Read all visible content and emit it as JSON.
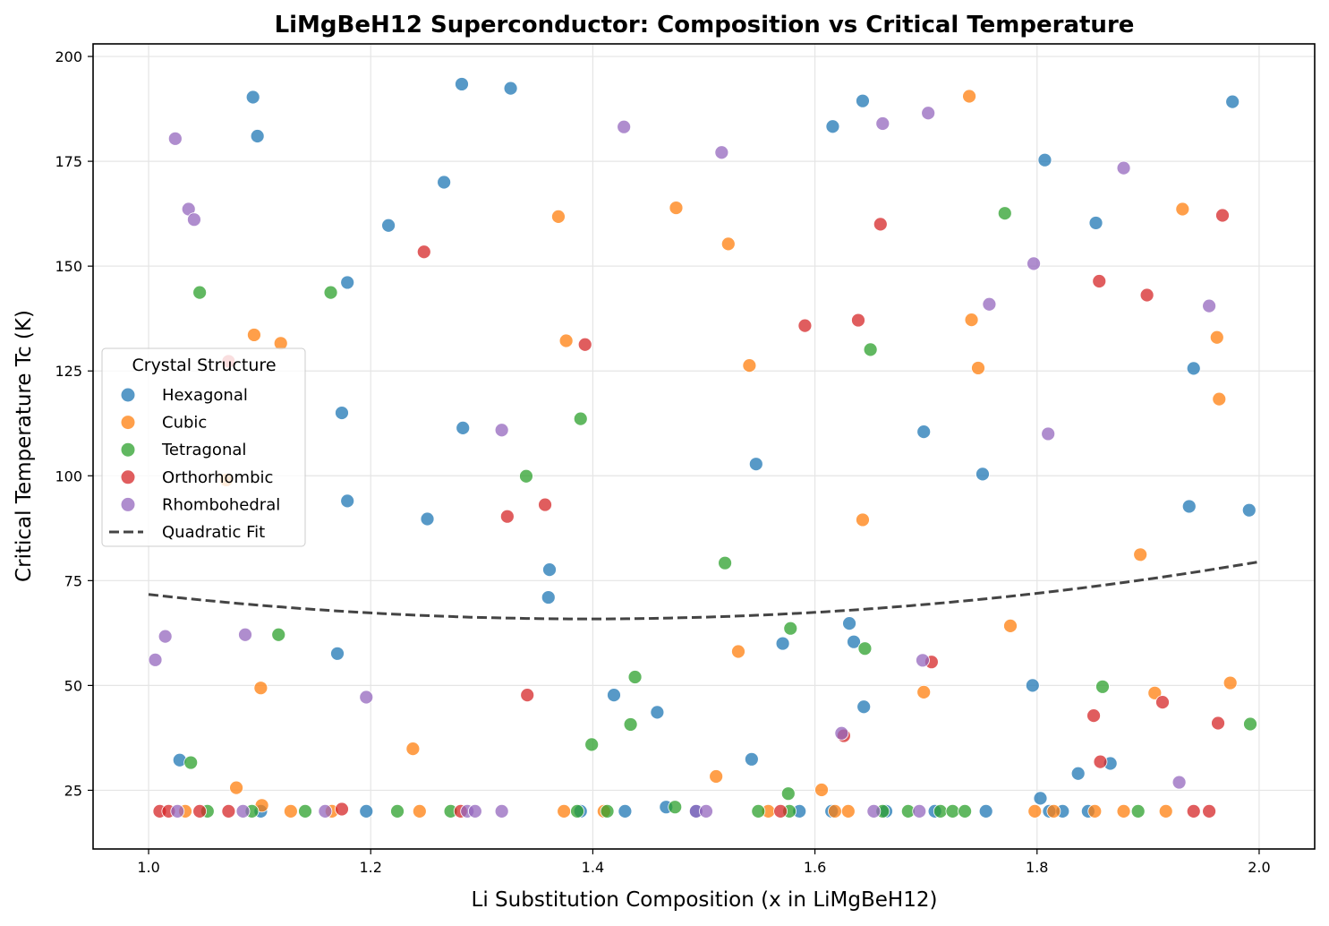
{
  "chart_data": {
    "type": "scatter",
    "title": "LiMgBeH12 Superconductor: Composition vs Critical Temperature",
    "xlabel": "Li Substitution Composition (x in LiMgBeH12)",
    "ylabel": "Critical Temperature Tc (K)",
    "xlim": [
      0.95,
      2.05
    ],
    "ylim": [
      11,
      203
    ],
    "xticks": [
      "1.0",
      "1.2",
      "1.4",
      "1.6",
      "1.8",
      "2.0"
    ],
    "yticks": [
      "25",
      "50",
      "75",
      "100",
      "125",
      "150",
      "175",
      "200"
    ],
    "xtick_values": [
      1.0,
      1.2,
      1.4,
      1.6,
      1.8,
      2.0
    ],
    "ytick_values": [
      25,
      50,
      75,
      100,
      125,
      150,
      175,
      200
    ],
    "grid": true,
    "legend": {
      "title": "Crystal Structure",
      "placement": "center-left",
      "entries": [
        "Hexagonal",
        "Cubic",
        "Tetragonal",
        "Orthorhombic",
        "Rhombohedral",
        "Quadratic Fit"
      ]
    },
    "colors": {
      "Hexagonal": "#1f77b4",
      "Cubic": "#ff7f0e",
      "Tetragonal": "#2ca02c",
      "Orthorhombic": "#d62728",
      "Rhombohedral": "#9467bd",
      "fit": "#444444"
    },
    "series": [
      {
        "name": "Hexagonal",
        "points": [
          [
            1.094,
            190.3
          ],
          [
            1.098,
            181.0
          ],
          [
            1.282,
            193.4
          ],
          [
            1.326,
            192.4
          ],
          [
            1.266,
            170.0
          ],
          [
            1.216,
            159.7
          ],
          [
            1.179,
            146.1
          ],
          [
            1.174,
            115.0
          ],
          [
            1.283,
            111.4
          ],
          [
            1.179,
            94.0
          ],
          [
            1.251,
            89.7
          ],
          [
            1.361,
            77.6
          ],
          [
            1.36,
            71.0
          ],
          [
            1.17,
            57.6
          ],
          [
            1.028,
            32.2
          ],
          [
            1.419,
            47.7
          ],
          [
            1.458,
            43.6
          ],
          [
            1.543,
            32.4
          ],
          [
            1.547,
            102.8
          ],
          [
            1.571,
            60.0
          ],
          [
            1.616,
            183.3
          ],
          [
            1.643,
            189.4
          ],
          [
            1.631,
            64.8
          ],
          [
            1.635,
            60.4
          ],
          [
            1.644,
            44.9
          ],
          [
            1.698,
            110.5
          ],
          [
            1.751,
            100.4
          ],
          [
            1.807,
            175.3
          ],
          [
            1.853,
            160.3
          ],
          [
            1.796,
            50.0
          ],
          [
            1.803,
            23.1
          ],
          [
            1.837,
            29.0
          ],
          [
            1.866,
            31.4
          ],
          [
            1.941,
            125.6
          ],
          [
            1.937,
            92.7
          ],
          [
            1.991,
            91.8
          ],
          [
            1.976,
            189.2
          ],
          [
            1.101,
            20
          ],
          [
            1.196,
            20
          ],
          [
            1.389,
            20
          ],
          [
            1.429,
            20
          ],
          [
            1.466,
            21
          ],
          [
            1.493,
            20
          ],
          [
            1.586,
            20
          ],
          [
            1.615,
            20
          ],
          [
            1.664,
            20
          ],
          [
            1.708,
            20
          ],
          [
            1.754,
            20
          ],
          [
            1.811,
            20
          ],
          [
            1.823,
            20
          ],
          [
            1.846,
            20
          ]
        ]
      },
      {
        "name": "Cubic",
        "points": [
          [
            1.095,
            133.6
          ],
          [
            1.119,
            131.6
          ],
          [
            1.07,
            99.0
          ],
          [
            1.101,
            49.4
          ],
          [
            1.079,
            25.6
          ],
          [
            1.102,
            21.4
          ],
          [
            1.238,
            34.9
          ],
          [
            1.369,
            161.8
          ],
          [
            1.376,
            132.2
          ],
          [
            1.475,
            163.9
          ],
          [
            1.522,
            155.3
          ],
          [
            1.541,
            126.3
          ],
          [
            1.531,
            58.1
          ],
          [
            1.511,
            28.3
          ],
          [
            1.606,
            25.1
          ],
          [
            1.643,
            89.5
          ],
          [
            1.698,
            48.4
          ],
          [
            1.739,
            190.5
          ],
          [
            1.741,
            137.2
          ],
          [
            1.747,
            125.7
          ],
          [
            1.776,
            64.2
          ],
          [
            1.893,
            81.2
          ],
          [
            1.906,
            48.2
          ],
          [
            1.931,
            163.6
          ],
          [
            1.962,
            133.0
          ],
          [
            1.964,
            118.3
          ],
          [
            1.974,
            50.6
          ],
          [
            1.033,
            20
          ],
          [
            1.128,
            20
          ],
          [
            1.165,
            20
          ],
          [
            1.244,
            20
          ],
          [
            1.374,
            20
          ],
          [
            1.41,
            20
          ],
          [
            1.558,
            20
          ],
          [
            1.618,
            20
          ],
          [
            1.63,
            20
          ],
          [
            1.798,
            20
          ],
          [
            1.815,
            20
          ],
          [
            1.852,
            20
          ],
          [
            1.878,
            20
          ],
          [
            1.916,
            20
          ]
        ]
      },
      {
        "name": "Tetragonal",
        "points": [
          [
            1.046,
            143.7
          ],
          [
            1.164,
            143.7
          ],
          [
            1.117,
            62.1
          ],
          [
            1.038,
            31.6
          ],
          [
            1.34,
            99.9
          ],
          [
            1.389,
            113.6
          ],
          [
            1.399,
            35.9
          ],
          [
            1.434,
            40.7
          ],
          [
            1.438,
            52.0
          ],
          [
            1.519,
            79.2
          ],
          [
            1.578,
            63.6
          ],
          [
            1.576,
            24.2
          ],
          [
            1.65,
            130.1
          ],
          [
            1.645,
            58.8
          ],
          [
            1.771,
            162.6
          ],
          [
            1.859,
            49.7
          ],
          [
            1.992,
            40.8
          ],
          [
            1.053,
            20
          ],
          [
            1.093,
            20
          ],
          [
            1.141,
            20
          ],
          [
            1.224,
            20
          ],
          [
            1.272,
            20
          ],
          [
            1.386,
            20
          ],
          [
            1.413,
            20
          ],
          [
            1.474,
            21
          ],
          [
            1.549,
            20
          ],
          [
            1.577,
            20
          ],
          [
            1.661,
            20
          ],
          [
            1.684,
            20
          ],
          [
            1.713,
            20
          ],
          [
            1.724,
            20
          ],
          [
            1.735,
            20
          ],
          [
            1.891,
            20
          ]
        ]
      },
      {
        "name": "Orthorhombic",
        "points": [
          [
            1.072,
            127.3
          ],
          [
            1.248,
            153.4
          ],
          [
            1.393,
            131.3
          ],
          [
            1.323,
            90.3
          ],
          [
            1.357,
            93.1
          ],
          [
            1.341,
            47.7
          ],
          [
            1.591,
            135.8
          ],
          [
            1.639,
            137.1
          ],
          [
            1.659,
            160.0
          ],
          [
            1.626,
            38.0
          ],
          [
            1.705,
            55.6
          ],
          [
            1.851,
            42.8
          ],
          [
            1.857,
            31.8
          ],
          [
            1.856,
            146.4
          ],
          [
            1.899,
            143.1
          ],
          [
            1.913,
            46.0
          ],
          [
            1.963,
            41.0
          ],
          [
            1.967,
            162.1
          ],
          [
            1.01,
            20
          ],
          [
            1.018,
            20
          ],
          [
            1.046,
            20
          ],
          [
            1.072,
            20
          ],
          [
            1.174,
            20.5
          ],
          [
            1.281,
            20
          ],
          [
            1.569,
            20
          ],
          [
            1.941,
            20
          ],
          [
            1.955,
            20
          ]
        ]
      },
      {
        "name": "Rhombohedral",
        "points": [
          [
            1.024,
            180.4
          ],
          [
            1.036,
            163.6
          ],
          [
            1.041,
            161.1
          ],
          [
            1.006,
            56.1
          ],
          [
            1.015,
            61.7
          ],
          [
            1.087,
            62.1
          ],
          [
            1.196,
            47.2
          ],
          [
            1.318,
            110.9
          ],
          [
            1.428,
            183.2
          ],
          [
            1.516,
            177.1
          ],
          [
            1.661,
            184.0
          ],
          [
            1.702,
            186.5
          ],
          [
            1.697,
            56.0
          ],
          [
            1.624,
            38.6
          ],
          [
            1.757,
            140.9
          ],
          [
            1.797,
            150.6
          ],
          [
            1.81,
            110.0
          ],
          [
            1.878,
            173.4
          ],
          [
            1.955,
            140.5
          ],
          [
            1.928,
            26.9
          ],
          [
            1.026,
            20
          ],
          [
            1.085,
            20
          ],
          [
            1.159,
            20
          ],
          [
            1.287,
            20
          ],
          [
            1.294,
            20
          ],
          [
            1.318,
            20
          ],
          [
            1.493,
            20
          ],
          [
            1.502,
            20
          ],
          [
            1.653,
            20
          ],
          [
            1.694,
            20
          ]
        ]
      }
    ],
    "fit": {
      "name": "Quadratic Fit",
      "equation_coeffs": {
        "a": 37.3,
        "b": -104.1,
        "c": 138.5
      },
      "x_range": [
        1.0,
        2.0
      ]
    }
  }
}
